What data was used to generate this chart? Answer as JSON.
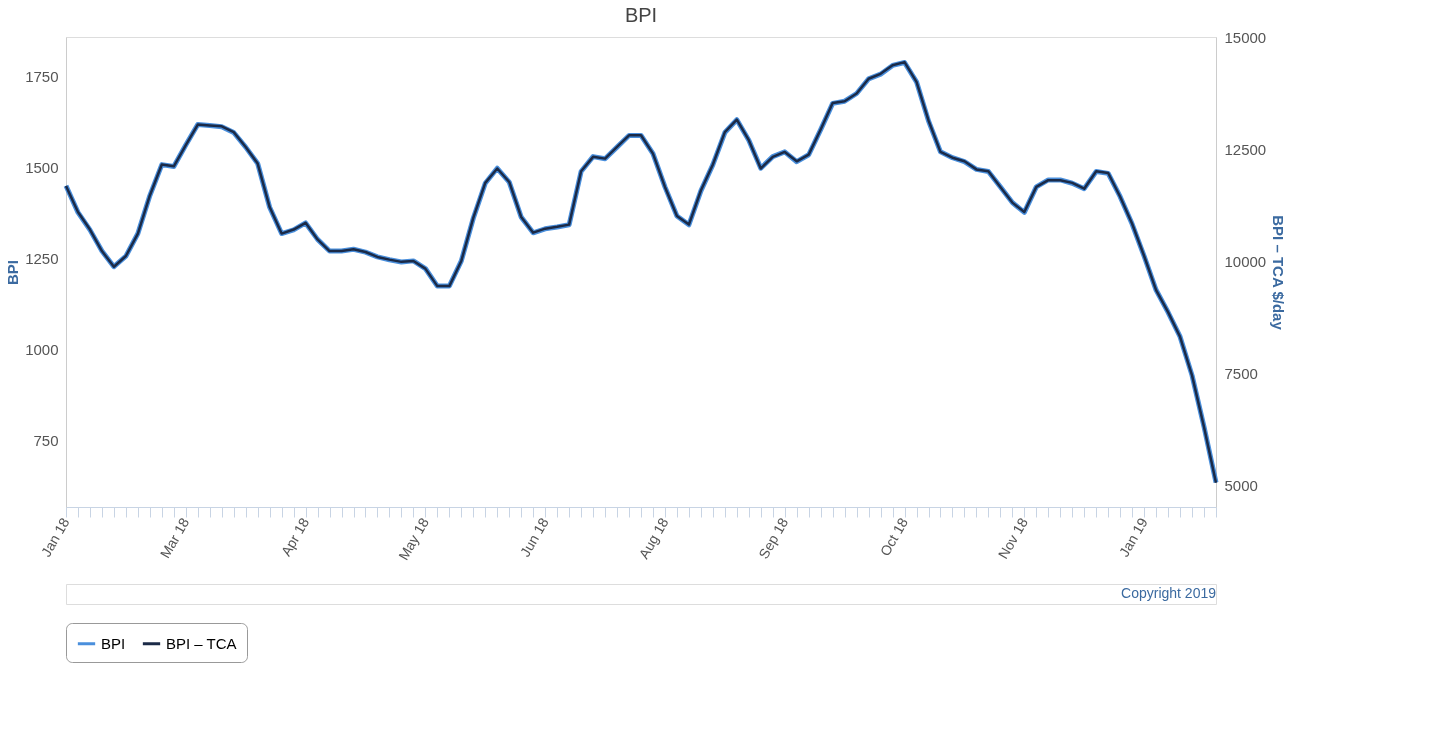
{
  "chart_data": {
    "type": "line",
    "title": "BPI",
    "ylabel": "BPI",
    "y2label": "BPI – TCA $/day",
    "categories": [
      "Jan 18",
      null,
      null,
      null,
      null,
      null,
      null,
      null,
      null,
      null,
      "Mar 18",
      null,
      null,
      null,
      null,
      null,
      null,
      null,
      null,
      null,
      "Apr 18",
      null,
      null,
      null,
      null,
      null,
      null,
      null,
      null,
      null,
      "May 18",
      null,
      null,
      null,
      null,
      null,
      null,
      null,
      null,
      null,
      "Jun 18",
      null,
      null,
      null,
      null,
      null,
      null,
      null,
      null,
      null,
      "Aug 18",
      null,
      null,
      null,
      null,
      null,
      null,
      null,
      null,
      null,
      "Sep 18",
      null,
      null,
      null,
      null,
      null,
      null,
      null,
      null,
      null,
      "Oct 18",
      null,
      null,
      null,
      null,
      null,
      null,
      null,
      null,
      null,
      "Nov 18",
      null,
      null,
      null,
      null,
      null,
      null,
      null,
      null,
      null,
      "Jan 19",
      null,
      null,
      null,
      null,
      null,
      null
    ],
    "series": [
      {
        "name": "BPI",
        "color": "#4a8fdc",
        "values": [
          1449,
          1376,
          1328,
          1270,
          1227,
          1256,
          1318,
          1422,
          1507,
          1502,
          1561,
          1617,
          1614,
          1611,
          1595,
          1555,
          1510,
          1390,
          1318,
          1328,
          1347,
          1302,
          1270,
          1270,
          1275,
          1267,
          1254,
          1246,
          1240,
          1243,
          1222,
          1174,
          1174,
          1243,
          1360,
          1456,
          1497,
          1459,
          1363,
          1320,
          1331,
          1336,
          1342,
          1488,
          1529,
          1523,
          1555,
          1587,
          1587,
          1537,
          1446,
          1366,
          1342,
          1435,
          1507,
          1595,
          1630,
          1574,
          1497,
          1529,
          1542,
          1515,
          1534,
          1603,
          1675,
          1681,
          1702,
          1742,
          1755,
          1779,
          1787,
          1734,
          1627,
          1542,
          1526,
          1515,
          1494,
          1488,
          1446,
          1403,
          1376,
          1446,
          1465,
          1465,
          1456,
          1441,
          1488,
          1483,
          1419,
          1344,
          1256,
          1163,
          1102,
          1035,
          929,
          788,
          635
        ]
      },
      {
        "name": "BPI – TCA",
        "color": "#1b2a47",
        "axis": "y2",
        "values": [
          11680,
          11100,
          10710,
          10230,
          9880,
          10120,
          10620,
          11470,
          12160,
          12120,
          12590,
          13050,
          13030,
          13010,
          12880,
          12550,
          12180,
          11210,
          10620,
          10710,
          10860,
          10490,
          10230,
          10230,
          10270,
          10210,
          10100,
          10040,
          9990,
          10010,
          9840,
          9450,
          9450,
          10010,
          10970,
          11750,
          12070,
          11770,
          10990,
          10640,
          10730,
          10770,
          10820,
          12010,
          12330,
          12290,
          12550,
          12810,
          12810,
          12400,
          11660,
          11010,
          10820,
          11580,
          12160,
          12880,
          13160,
          12700,
          12070,
          12330,
          12440,
          12230,
          12380,
          12940,
          13530,
          13570,
          13740,
          14070,
          14180,
          14370,
          14440,
          14000,
          13140,
          12440,
          12310,
          12230,
          12050,
          12010,
          11660,
          11310,
          11100,
          11660,
          11810,
          11810,
          11750,
          11620,
          12010,
          11970,
          11440,
          10840,
          10120,
          9360,
          8870,
          8320,
          7460,
          6310,
          5070
        ]
      }
    ],
    "ylim": [
      568,
      1857
    ],
    "yticks": [
      750,
      1000,
      1250,
      1500,
      1750
    ],
    "y2lim": [
      4528,
      15000
    ],
    "y2ticks": [
      5000,
      7500,
      10000,
      12500,
      15000
    ],
    "grid": false,
    "legend": "bottom left",
    "marker": "none",
    "line_style": "solid",
    "annotations": [
      "Copyright 2019"
    ]
  }
}
